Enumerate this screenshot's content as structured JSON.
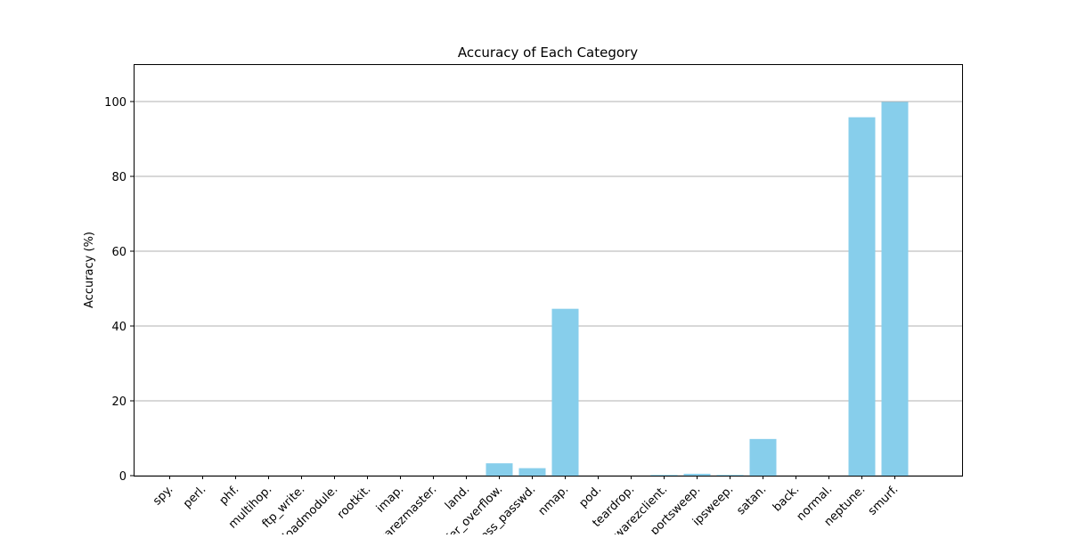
{
  "chart_data": {
    "type": "bar",
    "title": "Accuracy of Each Category",
    "xlabel": "",
    "ylabel": "Accuracy (%)",
    "categories": [
      "spy.",
      "perl.",
      "phf.",
      "multihop.",
      "ftp_write.",
      "loadmodule.",
      "rootkit.",
      "imap.",
      "warezmaster.",
      "land.",
      "buffer_overflow.",
      "guess_passwd.",
      "nmap.",
      "pod.",
      "teardrop.",
      "warezclient.",
      "portsweep.",
      "ipsweep.",
      "satan.",
      "back.",
      "normal.",
      "neptune.",
      "smurf."
    ],
    "values": [
      0,
      0,
      0,
      0,
      0,
      0,
      0,
      0,
      0,
      0,
      3.3,
      2.0,
      44.6,
      0,
      0,
      0.2,
      0.5,
      0.2,
      9.8,
      0,
      0,
      95.8,
      99.9
    ],
    "ylim": [
      0,
      110
    ],
    "yticks": [
      0,
      20,
      40,
      60,
      80,
      100
    ],
    "grid": "y-axis horizontal lines",
    "legend": "none",
    "bar_color": "#87ceeb",
    "grid_color": "#b0b0b0"
  }
}
